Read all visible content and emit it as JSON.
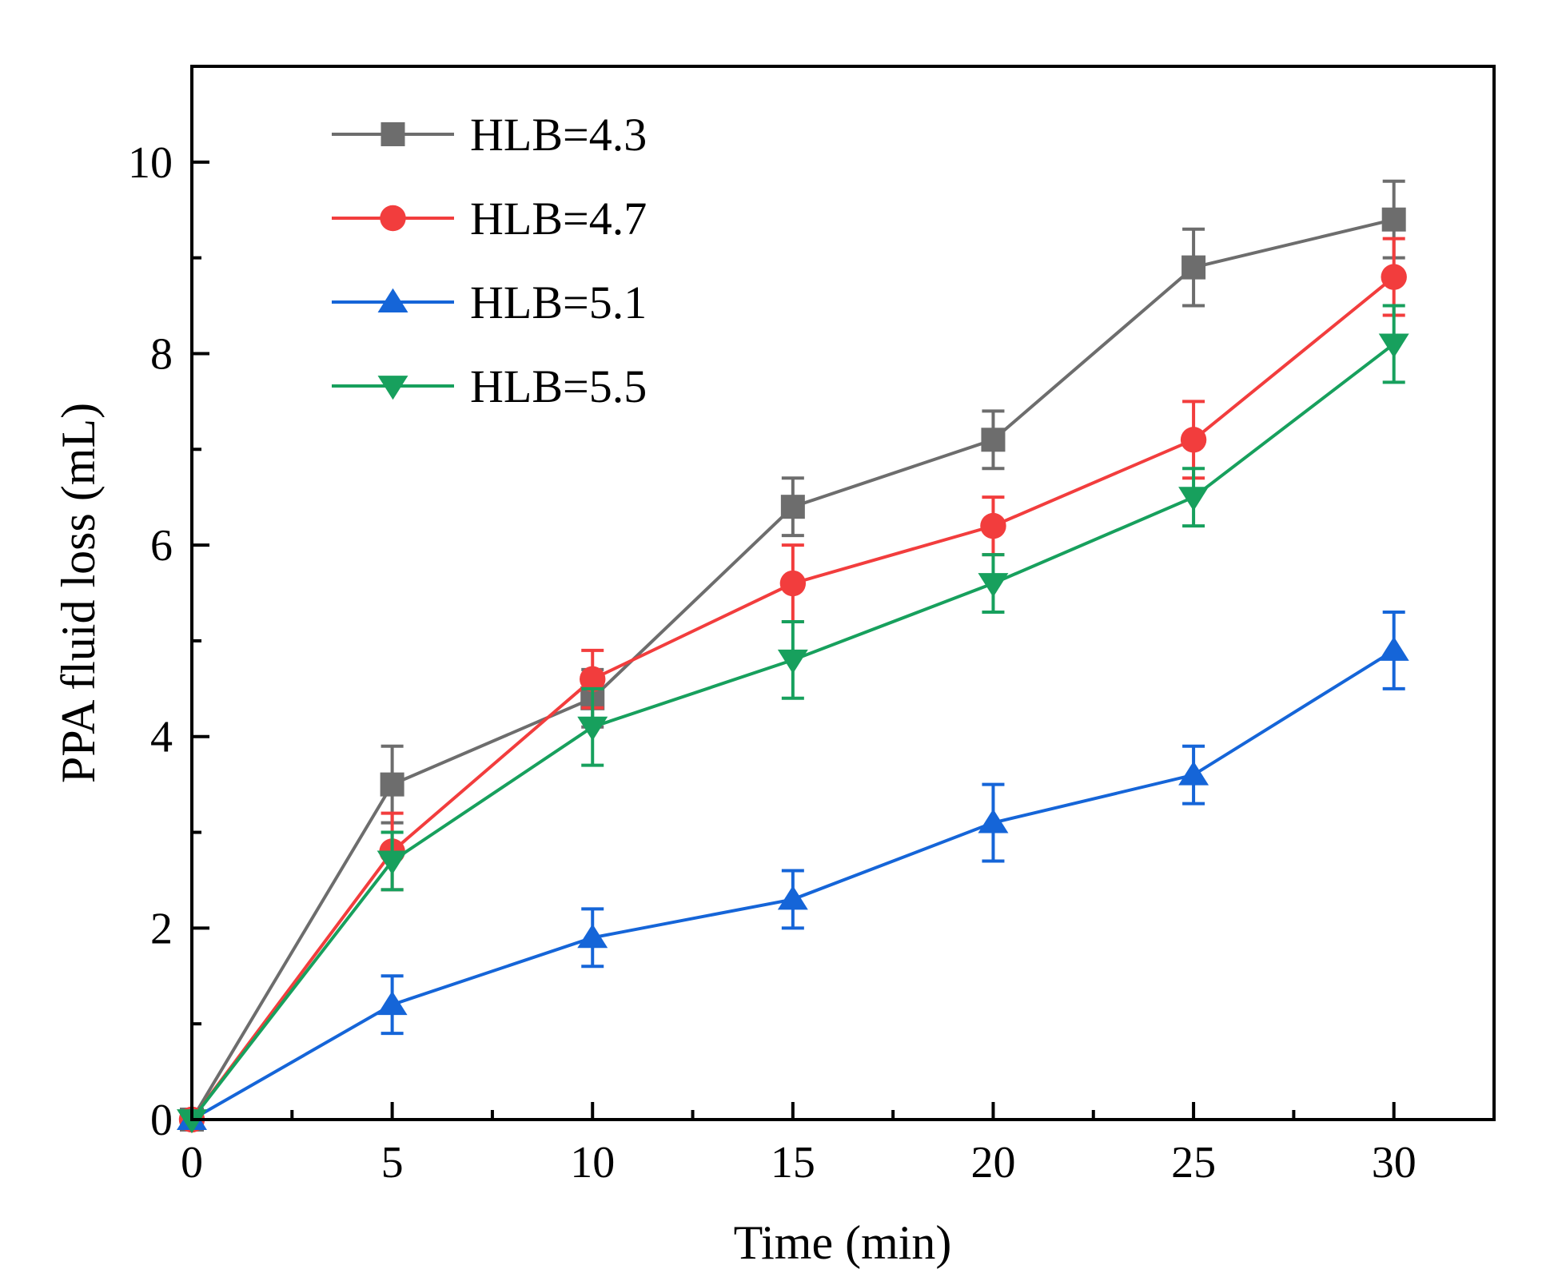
{
  "chart_data": {
    "type": "line",
    "xlabel": "Time (min)",
    "ylabel": "PPA fluid loss (mL)",
    "xlim": [
      0,
      32.5
    ],
    "ylim": [
      0,
      11
    ],
    "x_ticks": [
      0,
      5,
      10,
      15,
      20,
      25,
      30
    ],
    "y_ticks": [
      0,
      2,
      4,
      6,
      8,
      10
    ],
    "grid": false,
    "legend_position": "top-left",
    "x": [
      0,
      5,
      10,
      15,
      20,
      25,
      30
    ],
    "series": [
      {
        "name": "HLB=4.3",
        "color": "#6d6d6d",
        "marker": "square",
        "values": [
          0,
          3.5,
          4.4,
          6.4,
          7.1,
          8.9,
          9.4
        ],
        "errors": [
          0,
          0.4,
          0.3,
          0.3,
          0.3,
          0.4,
          0.4
        ]
      },
      {
        "name": "HLB=4.7",
        "color": "#f23d3d",
        "marker": "circle",
        "values": [
          0,
          2.8,
          4.6,
          5.6,
          6.2,
          7.1,
          8.8
        ],
        "errors": [
          0,
          0.4,
          0.3,
          0.4,
          0.3,
          0.4,
          0.4
        ]
      },
      {
        "name": "HLB=5.1",
        "color": "#1565d8",
        "marker": "triangle-up",
        "values": [
          0,
          1.2,
          1.9,
          2.3,
          3.1,
          3.6,
          4.9
        ],
        "errors": [
          0,
          0.3,
          0.3,
          0.3,
          0.4,
          0.3,
          0.4
        ]
      },
      {
        "name": "HLB=5.5",
        "color": "#17a05d",
        "marker": "triangle-down",
        "values": [
          0,
          2.7,
          4.1,
          4.8,
          5.6,
          6.5,
          8.1
        ],
        "errors": [
          0,
          0.3,
          0.4,
          0.4,
          0.3,
          0.3,
          0.4
        ]
      }
    ]
  }
}
